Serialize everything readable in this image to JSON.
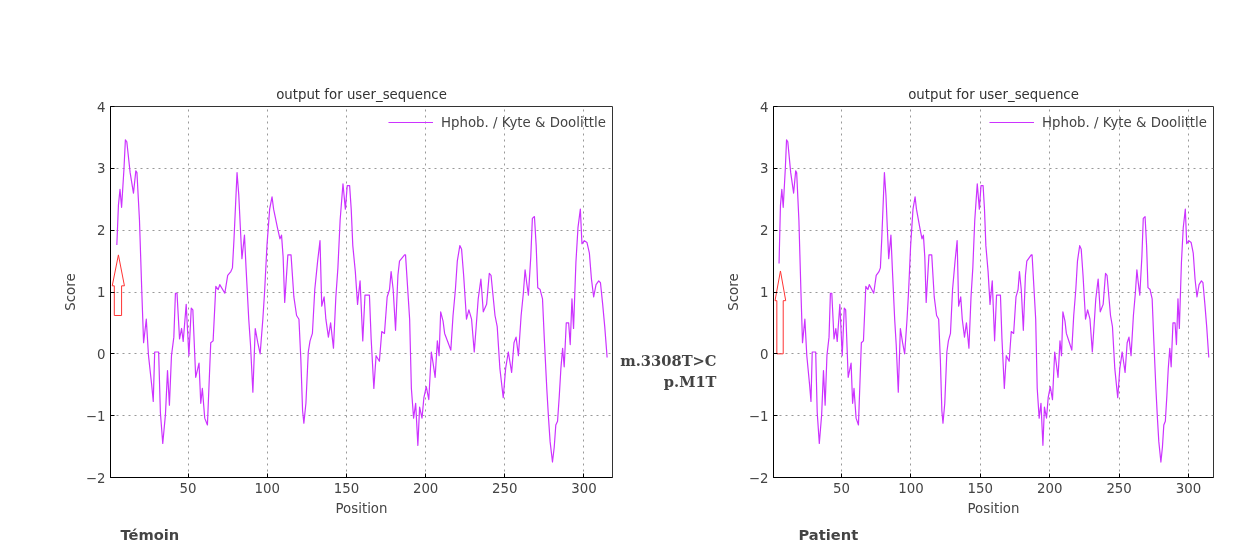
{
  "chart_data": [
    {
      "type": "line",
      "title": "output for user_sequence",
      "xlabel": "Position",
      "ylabel": "Score",
      "xlim": [
        1,
        318
      ],
      "ylim": [
        -2,
        4
      ],
      "xticks": [
        50,
        100,
        150,
        200,
        250,
        300
      ],
      "yticks": [
        -2,
        -1,
        0,
        1,
        2,
        3,
        4
      ],
      "grid": true,
      "legend": "top right",
      "marker": "none",
      "line_style": "solid",
      "annotations": [
        "Témoin"
      ],
      "series": [
        {
          "name": "Hphob. / Kyte & Doolittle",
          "color": "#cc33ff",
          "x": [
            5,
            6,
            7,
            8,
            9.5,
            10.4,
            11.3,
            13.4,
            15.5,
            17,
            17.7,
            19.3,
            20.8,
            21.9,
            23.6,
            25,
            27,
            28,
            28.9,
            31.4,
            32.5,
            34,
            35.7,
            37,
            38.2,
            39.5,
            41,
            42,
            43,
            44.6,
            45.9,
            46.9,
            48.8,
            50.5,
            52,
            53,
            54.8,
            56.9,
            58,
            59,
            60.5,
            62.2,
            64.3,
            65.8,
            67.5,
            69,
            70,
            73.2,
            75,
            77,
            78,
            79,
            80.9,
            82,
            83,
            84,
            85.6,
            86.6,
            88.3,
            89.4,
            90.9,
            92.4,
            94,
            95.5,
            97.2,
            98.3,
            99.8,
            101.5,
            103,
            104,
            106.4,
            108,
            109,
            110,
            111,
            113,
            115,
            116.8,
            118.5,
            120,
            121.2,
            122.3,
            123.1,
            124.4,
            125.9,
            127,
            128.5,
            130,
            131.8,
            133.3,
            134.4,
            135.9,
            137,
            138.6,
            140,
            141.8,
            143.3,
            144.6,
            146,
            147.8,
            149.3,
            150.5,
            152,
            153,
            154,
            155.6,
            157,
            158.6,
            160.3,
            161.7,
            164.5,
            165.6,
            167.3,
            168.7,
            170.8,
            172.3,
            174,
            175.7,
            177.2,
            178.2,
            179.5,
            181,
            182.5,
            183.5,
            186.7,
            187.3,
            189.9,
            191,
            192.4,
            193.7,
            195.1,
            196.2,
            197.7,
            198.9,
            200.4,
            202,
            203.6,
            204.7,
            206,
            207.4,
            208.5,
            209.5,
            211,
            212,
            214.2,
            215.9,
            217.3,
            218.8,
            220,
            221.6,
            222.7,
            224,
            225.8,
            227.3,
            229,
            230.7,
            232,
            233.2,
            234.9,
            236.4,
            238.5,
            240.2,
            241.3,
            243.8,
            245.2,
            246.9,
            249,
            250.5,
            252.2,
            254.3,
            255.8,
            257.1,
            258.6,
            260.3,
            261.7,
            262.8,
            263.8,
            264.9,
            266.4,
            267.4,
            268.7,
            269.8,
            270.8,
            272.3,
            273.8,
            275,
            276.5,
            277.6,
            278.6,
            280.1,
            281.2,
            282.2,
            283.3,
            284.4,
            285.4,
            286.5,
            287.5,
            288.8,
            290.3,
            291.3,
            292.4,
            293.4,
            294.9,
            296.2,
            297.7,
            298.7,
            300.2,
            301.9,
            303.4,
            304.7,
            306.1,
            307.6,
            309.3,
            310.4,
            311.8,
            313.1,
            314.6
          ],
          "values": [
            1.76,
            2.4,
            2.66,
            2.37,
            2.99,
            3.46,
            3.43,
            2.93,
            2.6,
            2.96,
            2.93,
            2.16,
            0.98,
            0.18,
            0.56,
            -0.03,
            -0.5,
            -0.77,
            0.03,
            0.03,
            -0.95,
            -1.45,
            -0.98,
            -0.27,
            -0.83,
            -0.03,
            0.27,
            0.98,
            0.98,
            0.24,
            0.41,
            0.2,
            0.8,
            -0.03,
            0.74,
            0.71,
            -0.38,
            -0.15,
            -0.8,
            -0.56,
            -1.04,
            -1.15,
            0.18,
            0.21,
            1.09,
            1.04,
            1.12,
            0.98,
            1.27,
            1.33,
            1.39,
            1.86,
            2.93,
            2.57,
            2.04,
            1.54,
            1.92,
            1.39,
            0.56,
            0.15,
            -0.62,
            0.41,
            0.18,
            0,
            0.56,
            1.0,
            1.75,
            2.34,
            2.54,
            2.34,
            2.04,
            1.86,
            1.92,
            1.57,
            0.83,
            1.6,
            1.6,
            0.92,
            0.62,
            0.56,
            -0.09,
            -0.92,
            -1.12,
            -0.8,
            0.03,
            0.21,
            0.33,
            1.04,
            1.5,
            1.83,
            0.77,
            0.92,
            0.56,
            0.27,
            0.5,
            0.09,
            0.92,
            1.39,
            2.16,
            2.75,
            2.34,
            2.72,
            2.72,
            2.34,
            1.75,
            1.33,
            0.8,
            1.18,
            0.21,
            0.95,
            0.95,
            0.24,
            -0.56,
            -0.03,
            -0.12,
            0.36,
            0.33,
            0.92,
            1.04,
            1.33,
            1.04,
            0.38,
            1.27,
            1.5,
            1.6,
            1.6,
            0.56,
            -0.56,
            -1.04,
            -0.8,
            -1.48,
            -0.86,
            -1.04,
            -0.71,
            -0.53,
            -0.74,
            0.03,
            -0.15,
            -0.38,
            0.21,
            -0.03,
            0.68,
            0.53,
            0.33,
            0.18,
            0.06,
            0.62,
            1.04,
            1.5,
            1.75,
            1.69,
            1.27,
            0.56,
            0.71,
            0.56,
            0.03,
            0.47,
            0.89,
            1.21,
            0.68,
            0.8,
            1.3,
            1.27,
            0.62,
            0.44,
            -0.24,
            -0.71,
            -0.24,
            0.03,
            -0.3,
            0.18,
            0.27,
            -0.03,
            0.62,
            0.98,
            1.36,
            1.15,
            0.95,
            1.57,
            2.19,
            2.22,
            1.75,
            1.07,
            1.04,
            0.89,
            0.21,
            -0.56,
            -1.04,
            -1.42,
            -1.75,
            -1.51,
            -1.15,
            -1.09,
            -0.68,
            -0.24,
            0.09,
            -0.21,
            0.5,
            0.5,
            0.15,
            0.89,
            0.41,
            1.48,
            2.04,
            2.34,
            1.78,
            1.83,
            1.8,
            1.63,
            1.21,
            0.92,
            1.12,
            1.18,
            1.15,
            0.8,
            0.44,
            -0.06
          ]
        }
      ]
    },
    {
      "type": "line",
      "title": "output for user_sequence",
      "xlabel": "Position",
      "ylabel": "Score",
      "xlim": [
        1,
        318
      ],
      "ylim": [
        -2,
        4
      ],
      "xticks": [
        50,
        100,
        150,
        200,
        250,
        300
      ],
      "yticks": [
        -2,
        -1,
        0,
        1,
        2,
        3,
        4
      ],
      "grid": true,
      "legend": "top right",
      "marker": "none",
      "line_style": "solid",
      "annotations": [
        "Patient",
        "m.3308T>C",
        "p.M1T"
      ],
      "series": [
        {
          "name": "Hphob. / Kyte & Doolittle",
          "color": "#cc33ff",
          "x": [
            5,
            6,
            7,
            8,
            9.5,
            10.4,
            11.3,
            13.4,
            15.5,
            17,
            17.7,
            19.3,
            20.8,
            21.9,
            23.6,
            25,
            27,
            28,
            28.9,
            31.4,
            32.5,
            34,
            35.7,
            37,
            38.2,
            39.5,
            41,
            42,
            43,
            44.6,
            45.9,
            46.9,
            48.8,
            50.5,
            52,
            53,
            54.8,
            56.9,
            58,
            59,
            60.5,
            62.2,
            64.3,
            65.8,
            67.5,
            69,
            70,
            73.2,
            75,
            77,
            78,
            79,
            80.9,
            82,
            83,
            84,
            85.6,
            86.6,
            88.3,
            89.4,
            90.9,
            92.4,
            94,
            95.5,
            97.2,
            98.3,
            99.8,
            101.5,
            103,
            104,
            106.4,
            108,
            109,
            110,
            111,
            113,
            115,
            116.8,
            118.5,
            120,
            121.2,
            122.3,
            123.1,
            124.4,
            125.9,
            127,
            128.5,
            130,
            131.8,
            133.3,
            134.4,
            135.9,
            137,
            138.6,
            140,
            141.8,
            143.3,
            144.6,
            146,
            147.8,
            149.3,
            150.5,
            152,
            153,
            154,
            155.6,
            157,
            158.6,
            160.3,
            161.7,
            164.5,
            165.6,
            167.3,
            168.7,
            170.8,
            172.3,
            174,
            175.7,
            177.2,
            178.2,
            179.5,
            181,
            182.5,
            183.5,
            186.7,
            187.3,
            189.9,
            191,
            192.4,
            193.7,
            195.1,
            196.2,
            197.7,
            198.9,
            200.4,
            202,
            203.6,
            204.7,
            206,
            207.4,
            208.5,
            209.5,
            211,
            212,
            214.2,
            215.9,
            217.3,
            218.8,
            220,
            221.6,
            222.7,
            224,
            225.8,
            227.3,
            229,
            230.7,
            232,
            233.2,
            234.9,
            236.4,
            238.5,
            240.2,
            241.3,
            243.8,
            245.2,
            246.9,
            249,
            250.5,
            252.2,
            254.3,
            255.8,
            257.1,
            258.6,
            260.3,
            261.7,
            262.8,
            263.8,
            264.9,
            266.4,
            267.4,
            268.7,
            269.8,
            270.8,
            272.3,
            273.8,
            275,
            276.5,
            277.6,
            278.6,
            280.1,
            281.2,
            282.2,
            283.3,
            284.4,
            285.4,
            286.5,
            287.5,
            288.8,
            290.3,
            291.3,
            292.4,
            293.4,
            294.9,
            296.2,
            297.7,
            298.7,
            300.2,
            301.9,
            303.4,
            304.7,
            306.1,
            307.6,
            309.3,
            310.4,
            311.8,
            313.1,
            314.6
          ],
          "values": [
            1.46,
            2.4,
            2.66,
            2.37,
            2.99,
            3.46,
            3.43,
            2.93,
            2.6,
            2.96,
            2.93,
            2.16,
            0.98,
            0.18,
            0.56,
            -0.03,
            -0.5,
            -0.77,
            0.03,
            0.03,
            -0.95,
            -1.45,
            -0.98,
            -0.27,
            -0.83,
            -0.03,
            0.27,
            0.98,
            0.98,
            0.24,
            0.41,
            0.2,
            0.8,
            -0.03,
            0.74,
            0.71,
            -0.38,
            -0.15,
            -0.8,
            -0.56,
            -1.04,
            -1.15,
            0.18,
            0.21,
            1.09,
            1.04,
            1.12,
            0.98,
            1.27,
            1.33,
            1.39,
            1.86,
            2.93,
            2.57,
            2.04,
            1.54,
            1.92,
            1.39,
            0.56,
            0.15,
            -0.62,
            0.41,
            0.18,
            0,
            0.56,
            1.0,
            1.75,
            2.34,
            2.54,
            2.34,
            2.04,
            1.86,
            1.92,
            1.57,
            0.83,
            1.6,
            1.6,
            0.92,
            0.62,
            0.56,
            -0.09,
            -0.92,
            -1.12,
            -0.8,
            0.03,
            0.21,
            0.33,
            1.04,
            1.5,
            1.83,
            0.77,
            0.92,
            0.56,
            0.27,
            0.5,
            0.09,
            0.92,
            1.39,
            2.16,
            2.75,
            2.34,
            2.72,
            2.72,
            2.34,
            1.75,
            1.33,
            0.8,
            1.18,
            0.21,
            0.95,
            0.95,
            0.24,
            -0.56,
            -0.03,
            -0.12,
            0.36,
            0.33,
            0.92,
            1.04,
            1.33,
            1.04,
            0.38,
            1.27,
            1.5,
            1.6,
            1.6,
            0.56,
            -0.56,
            -1.04,
            -0.8,
            -1.48,
            -0.86,
            -1.04,
            -0.71,
            -0.53,
            -0.74,
            0.03,
            -0.15,
            -0.38,
            0.21,
            -0.03,
            0.68,
            0.53,
            0.33,
            0.18,
            0.06,
            0.62,
            1.04,
            1.5,
            1.75,
            1.69,
            1.27,
            0.56,
            0.71,
            0.56,
            0.03,
            0.47,
            0.89,
            1.21,
            0.68,
            0.8,
            1.3,
            1.27,
            0.62,
            0.44,
            -0.24,
            -0.71,
            -0.24,
            0.03,
            -0.3,
            0.18,
            0.27,
            -0.03,
            0.62,
            0.98,
            1.36,
            1.15,
            0.95,
            1.57,
            2.19,
            2.22,
            1.75,
            1.07,
            1.04,
            0.89,
            0.21,
            -0.56,
            -1.04,
            -1.42,
            -1.75,
            -1.51,
            -1.15,
            -1.09,
            -0.68,
            -0.24,
            0.09,
            -0.21,
            0.5,
            0.5,
            0.15,
            0.89,
            0.41,
            1.48,
            2.04,
            2.34,
            1.78,
            1.83,
            1.8,
            1.63,
            1.21,
            0.92,
            1.12,
            1.18,
            1.15,
            0.8,
            0.44,
            -0.06
          ]
        }
      ]
    }
  ]
}
